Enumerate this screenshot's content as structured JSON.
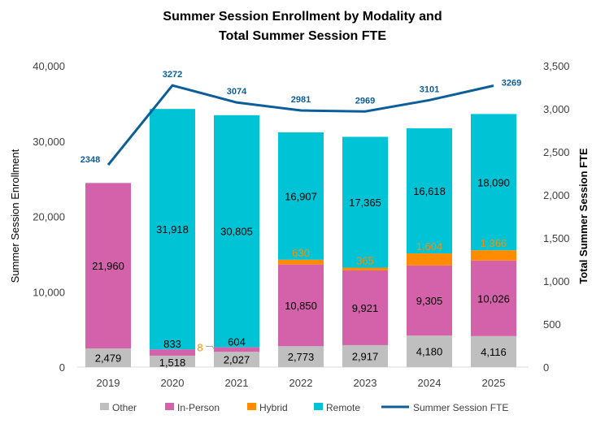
{
  "chart_data": {
    "type": "bar",
    "stacked": true,
    "title": [
      "Summer Session Enrollment by Modality and",
      "Total Summer Session FTE"
    ],
    "categories": [
      "2019",
      "2020",
      "2021",
      "2022",
      "2023",
      "2024",
      "2025"
    ],
    "ylabel": "Summer Session Enrollment",
    "y2label": "Total Summer Session FTE",
    "ylim": [
      0,
      40000
    ],
    "y2lim": [
      0,
      3500
    ],
    "yticks": [
      "0",
      "10,000",
      "20,000",
      "30,000",
      "40,000"
    ],
    "y2ticks": [
      "0",
      "500",
      "1,000",
      "1,500",
      "2,000",
      "2,500",
      "3,000",
      "3,500"
    ],
    "grid": false,
    "legend_position": "bottom",
    "series": [
      {
        "name": "Other",
        "color": "#bfbfbf",
        "label_color": "#000000",
        "values": [
          2479,
          1518,
          2027,
          2773,
          2917,
          4180,
          4116
        ],
        "labels": [
          "2,479",
          "1,518",
          "2,027",
          "2,773",
          "2,917",
          "4,180",
          "4,116"
        ]
      },
      {
        "name": "In-Person",
        "color": "#d462aa",
        "label_color": "#000000",
        "values": [
          21960,
          833,
          604,
          10850,
          9921,
          9305,
          10026
        ],
        "labels": [
          "21,960",
          "833",
          "604",
          "10,850",
          "9,921",
          "9,305",
          "10,026"
        ]
      },
      {
        "name": "Hybrid",
        "color": "#ff8c00",
        "label_color": "#ff8c00",
        "values": [
          0,
          0,
          8,
          630,
          365,
          1604,
          1366
        ],
        "labels": [
          "",
          "",
          "8",
          "630",
          "365",
          "1,604",
          "1,366"
        ]
      },
      {
        "name": "Remote",
        "color": "#00c4d6",
        "label_color": "#000000",
        "values": [
          0,
          31918,
          30805,
          16907,
          17365,
          16618,
          18090
        ],
        "labels": [
          "",
          "31,918",
          "30,805",
          "16,907",
          "17,365",
          "16,618",
          "18,090"
        ]
      }
    ],
    "line": {
      "name": "Summer Session FTE",
      "color": "#0b5e99",
      "axis": "y2",
      "values": [
        2348,
        3272,
        3074,
        2981,
        2969,
        3101,
        3269
      ],
      "labels": [
        "2348",
        "3272",
        "3074",
        "2981",
        "2969",
        "3101",
        "3269"
      ]
    }
  }
}
